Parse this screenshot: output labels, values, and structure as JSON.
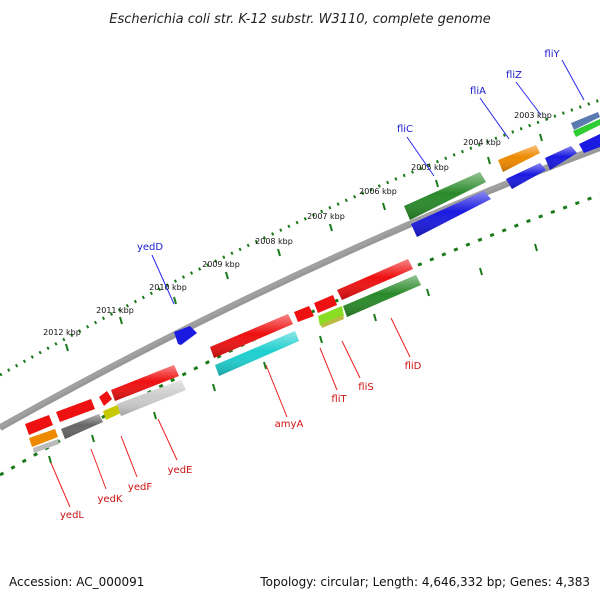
{
  "title": "Escherichia coli str. K-12 substr. W3110, complete genome",
  "accession": "Accession: AC_000091",
  "summary": "Topology: circular; Length: 4,646,332 bp; Genes: 4,383",
  "colors": {
    "backbone": "#7a7a7a",
    "ruler_ticks": "#1a7a1a",
    "forward_label": "#1a1acc",
    "reverse_label": "#cc1111",
    "red": "#ee1111",
    "green": "#2a8a2a",
    "blue": "#1a1ae0",
    "orange": "#ee8a00",
    "cyan": "#1fcfcf",
    "gray": "#666666",
    "lightgray": "#cccccc",
    "olive": "#c8c800",
    "lime": "#88dd22"
  },
  "ruler_labels": [
    "2012 kbp",
    "2011 kbp",
    "2010 kbp",
    "2009 kbp",
    "2008 kbp",
    "2007 kbp",
    "2006 kbp",
    "2005 kbp",
    "2004 kbp",
    "2003 kbp"
  ],
  "forward_gene_labels": [
    "yedD",
    "fliC",
    "fliA",
    "fliZ",
    "fliY"
  ],
  "reverse_gene_labels": [
    "amyA",
    "fliT",
    "fliS",
    "fliD",
    "yedL",
    "yedK",
    "yedF",
    "yedE"
  ]
}
